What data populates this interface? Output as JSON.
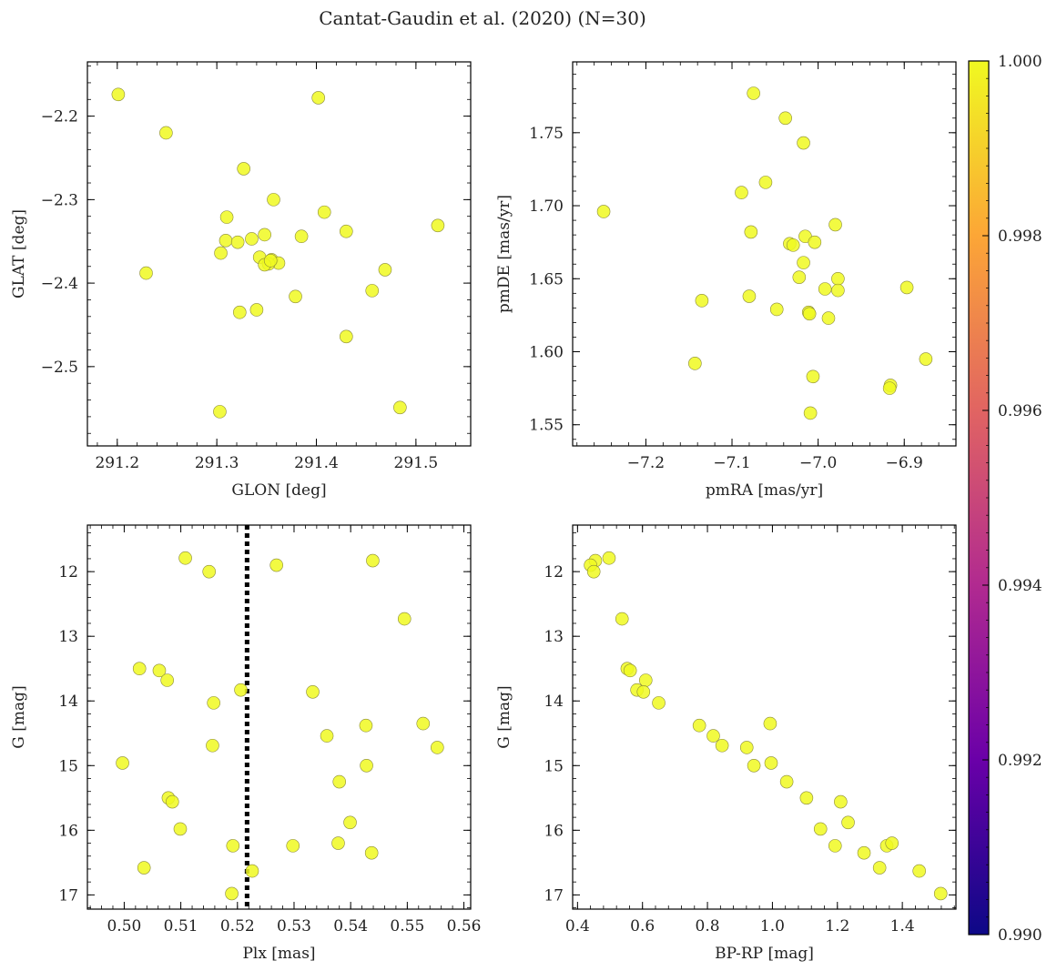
{
  "figure": {
    "title": "Cantat-Gaudin et al. (2020) (N=30)",
    "point_color": "#f0f921",
    "point_edge": "#8a8a3a",
    "vline_color": "#000000"
  },
  "colorbar": {
    "min": 0.99,
    "max": 1.0,
    "ticks": [
      "0.990",
      "0.992",
      "0.994",
      "0.996",
      "0.998",
      "1.000"
    ],
    "colormap": "plasma",
    "stops": [
      "#0d0887",
      "#6a00a8",
      "#b12a90",
      "#e16462",
      "#fca636",
      "#f0f921"
    ]
  },
  "chart_data": [
    {
      "id": "glon-glat",
      "type": "scatter",
      "xlabel": "GLON [deg]",
      "ylabel": "GLAT [deg]",
      "xlim": [
        291.17,
        291.555
      ],
      "ylim": [
        -2.595,
        -2.135
      ],
      "y_inverted": false,
      "xticks": [
        "291.2",
        "291.3",
        "291.4",
        "291.5"
      ],
      "xtick_values": [
        291.2,
        291.3,
        291.4,
        291.5
      ],
      "yticks": [
        "−2.2",
        "−2.3",
        "−2.4",
        "−2.5"
      ],
      "ytick_values": [
        -2.2,
        -2.3,
        -2.4,
        -2.5
      ],
      "x": [
        291.201,
        291.249,
        291.327,
        291.402,
        291.357,
        291.408,
        291.522,
        291.31,
        291.309,
        291.321,
        291.335,
        291.348,
        291.304,
        291.343,
        291.43,
        291.385,
        291.355,
        291.362,
        291.352,
        291.348,
        291.229,
        291.469,
        291.379,
        291.456,
        291.34,
        291.323,
        291.43,
        291.303,
        291.484,
        291.354
      ],
      "y": [
        -2.174,
        -2.22,
        -2.263,
        -2.178,
        -2.3,
        -2.315,
        -2.331,
        -2.321,
        -2.349,
        -2.351,
        -2.347,
        -2.342,
        -2.364,
        -2.369,
        -2.338,
        -2.344,
        -2.372,
        -2.376,
        -2.377,
        -2.378,
        -2.388,
        -2.384,
        -2.416,
        -2.409,
        -2.432,
        -2.435,
        -2.464,
        -2.554,
        -2.549,
        -2.373
      ]
    },
    {
      "id": "pmra-pmde",
      "type": "scatter",
      "xlabel": "pmRA [mas/yr]",
      "ylabel": "pmDE [mas/yr]",
      "xlim": [
        -7.285,
        -6.84
      ],
      "ylim": [
        1.5355,
        1.7985
      ],
      "y_inverted": false,
      "xticks": [
        "−7.2",
        "−7.1",
        "−7.0",
        "−6.9"
      ],
      "xtick_values": [
        -7.2,
        -7.1,
        -7.0,
        -6.9
      ],
      "yticks": [
        "1.75",
        "1.70",
        "1.65",
        "1.60",
        "1.55"
      ],
      "ytick_values": [
        1.75,
        1.7,
        1.65,
        1.6,
        1.55
      ],
      "x": [
        -7.075,
        -7.038,
        -7.017,
        -7.061,
        -7.089,
        -7.249,
        -7.078,
        -6.98,
        -7.033,
        -7.015,
        -7.004,
        -7.029,
        -7.017,
        -6.977,
        -7.022,
        -6.992,
        -6.977,
        -6.897,
        -7.08,
        -7.135,
        -7.048,
        -7.011,
        -7.01,
        -6.988,
        -7.143,
        -6.875,
        -6.916,
        -6.917,
        -7.006,
        -7.009
      ],
      "y": [
        1.777,
        1.76,
        1.743,
        1.716,
        1.709,
        1.696,
        1.682,
        1.687,
        1.674,
        1.679,
        1.675,
        1.673,
        1.661,
        1.65,
        1.651,
        1.643,
        1.642,
        1.644,
        1.638,
        1.635,
        1.629,
        1.627,
        1.626,
        1.623,
        1.592,
        1.595,
        1.577,
        1.575,
        1.583,
        1.558
      ]
    },
    {
      "id": "plx-g",
      "type": "scatter",
      "xlabel": "Plx [mas]",
      "ylabel": "G [mag]",
      "xlim": [
        0.4935,
        0.5612
      ],
      "ylim": [
        17.22,
        11.28
      ],
      "y_inverted": true,
      "xticks": [
        "0.50",
        "0.51",
        "0.52",
        "0.53",
        "0.54",
        "0.55",
        "0.56"
      ],
      "xtick_values": [
        0.5,
        0.51,
        0.52,
        0.53,
        0.54,
        0.55,
        0.56
      ],
      "yticks": [
        "12",
        "13",
        "14",
        "15",
        "16",
        "17"
      ],
      "ytick_values": [
        12,
        13,
        14,
        15,
        16,
        17
      ],
      "vline": 0.5217,
      "x": [
        0.5108,
        0.515,
        0.5269,
        0.5439,
        0.5495,
        0.5027,
        0.5062,
        0.5076,
        0.5158,
        0.5206,
        0.5333,
        0.5358,
        0.5427,
        0.5528,
        0.5156,
        0.5553,
        0.4997,
        0.538,
        0.5428,
        0.5078,
        0.5085,
        0.5399,
        0.5099,
        0.5035,
        0.5192,
        0.5298,
        0.5378,
        0.5437,
        0.5226,
        0.519
      ],
      "y": [
        11.79,
        12.0,
        11.9,
        11.83,
        12.73,
        13.5,
        13.53,
        13.68,
        14.03,
        13.83,
        13.86,
        14.54,
        14.38,
        14.35,
        14.69,
        14.72,
        14.96,
        15.25,
        15.0,
        15.5,
        15.56,
        15.88,
        15.98,
        16.58,
        16.24,
        16.24,
        16.2,
        16.35,
        16.63,
        16.98
      ]
    },
    {
      "id": "bprp-g",
      "type": "scatter",
      "xlabel": "BP-RP [mag]",
      "ylabel": "G [mag]",
      "xlim": [
        0.385,
        1.565
      ],
      "ylim": [
        17.22,
        11.28
      ],
      "y_inverted": true,
      "xticks": [
        "0.4",
        "0.6",
        "0.8",
        "1.0",
        "1.2",
        "1.4"
      ],
      "xtick_values": [
        0.4,
        0.6,
        0.8,
        1.0,
        1.2,
        1.4
      ],
      "yticks": [
        "12",
        "13",
        "14",
        "15",
        "16",
        "17"
      ],
      "ytick_values": [
        12,
        13,
        14,
        15,
        16,
        17
      ],
      "x": [
        0.497,
        0.455,
        0.44,
        0.45,
        0.537,
        0.553,
        0.562,
        0.61,
        0.583,
        0.603,
        0.65,
        0.775,
        0.818,
        0.845,
        0.921,
        0.993,
        0.996,
        0.943,
        1.044,
        1.105,
        1.21,
        1.233,
        1.148,
        1.193,
        1.282,
        1.33,
        1.352,
        1.368,
        1.452,
        1.518
      ],
      "y": [
        11.79,
        11.83,
        11.9,
        12.0,
        12.73,
        13.5,
        13.53,
        13.68,
        13.83,
        13.86,
        14.03,
        14.38,
        14.54,
        14.69,
        14.72,
        14.35,
        14.96,
        15.0,
        15.25,
        15.5,
        15.56,
        15.88,
        15.98,
        16.24,
        16.35,
        16.58,
        16.24,
        16.2,
        16.63,
        16.98
      ]
    }
  ]
}
